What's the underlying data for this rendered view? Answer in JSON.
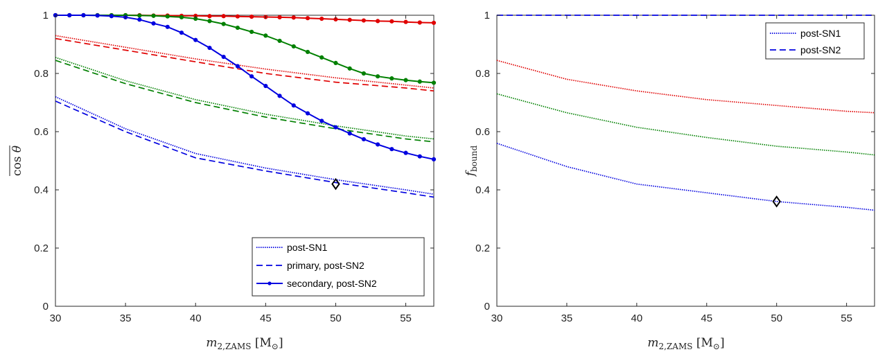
{
  "chart_data": [
    {
      "type": "line",
      "id": "left",
      "xlabel": "m_2,ZAMS [M_⊙]",
      "ylabel": "cos θ (mean)",
      "xlim": [
        30,
        57
      ],
      "ylim": [
        0,
        1
      ],
      "xticks": [
        "30",
        "35",
        "40",
        "45",
        "50",
        "55"
      ],
      "yticks": [
        "0",
        "0.2",
        "0.4",
        "0.6",
        "0.8",
        "1"
      ],
      "legend": {
        "position": "bottom-right",
        "entries": [
          "post-SN1",
          "primary, post-SN2",
          "secondary, post-SN2"
        ]
      },
      "marker": {
        "x": 50,
        "y": 0.42
      },
      "series": [
        {
          "name": "red post-SN1",
          "color": "#e00000",
          "style": "dotted",
          "x": [
            30,
            35,
            40,
            45,
            50,
            55,
            57
          ],
          "y": [
            0.93,
            0.89,
            0.85,
            0.815,
            0.785,
            0.76,
            0.75
          ]
        },
        {
          "name": "red primary, post-SN2",
          "color": "#e00000",
          "style": "dashed",
          "x": [
            30,
            35,
            40,
            45,
            50,
            55,
            57
          ],
          "y": [
            0.92,
            0.88,
            0.84,
            0.8,
            0.77,
            0.75,
            0.74
          ]
        },
        {
          "name": "red secondary, post-SN2",
          "color": "#e00000",
          "style": "solid-marker",
          "x": [
            30,
            31,
            32,
            33,
            34,
            35,
            36,
            37,
            38,
            39,
            40,
            41,
            42,
            43,
            44,
            45,
            46,
            47,
            48,
            49,
            50,
            51,
            52,
            53,
            54,
            55,
            56,
            57
          ],
          "y": [
            1.0,
            1.0,
            1.0,
            1.0,
            1.0,
            1.0,
            1.0,
            0.999,
            0.999,
            0.998,
            0.998,
            0.997,
            0.997,
            0.996,
            0.995,
            0.994,
            0.993,
            0.992,
            0.99,
            0.988,
            0.986,
            0.984,
            0.982,
            0.98,
            0.979,
            0.977,
            0.975,
            0.974
          ]
        },
        {
          "name": "green post-SN1",
          "color": "#008000",
          "style": "dotted",
          "x": [
            30,
            35,
            40,
            45,
            50,
            55,
            57
          ],
          "y": [
            0.855,
            0.775,
            0.71,
            0.66,
            0.62,
            0.585,
            0.575
          ]
        },
        {
          "name": "green primary, post-SN2",
          "color": "#008000",
          "style": "dashed",
          "x": [
            30,
            35,
            40,
            45,
            50,
            55,
            57
          ],
          "y": [
            0.845,
            0.765,
            0.7,
            0.65,
            0.61,
            0.575,
            0.565
          ]
        },
        {
          "name": "green secondary, post-SN2",
          "color": "#008000",
          "style": "solid-marker",
          "x": [
            30,
            31,
            32,
            33,
            34,
            35,
            36,
            37,
            38,
            39,
            40,
            41,
            42,
            43,
            44,
            45,
            46,
            47,
            48,
            49,
            50,
            51,
            52,
            53,
            54,
            55,
            56,
            57
          ],
          "y": [
            1.0,
            1.0,
            1.0,
            1.0,
            1.0,
            1.0,
            0.999,
            0.998,
            0.996,
            0.993,
            0.988,
            0.98,
            0.97,
            0.957,
            0.943,
            0.93,
            0.912,
            0.893,
            0.874,
            0.855,
            0.836,
            0.817,
            0.8,
            0.79,
            0.783,
            0.777,
            0.772,
            0.768
          ]
        },
        {
          "name": "blue post-SN1",
          "color": "#0000e0",
          "style": "dotted",
          "x": [
            30,
            35,
            40,
            45,
            50,
            55,
            57
          ],
          "y": [
            0.72,
            0.61,
            0.525,
            0.475,
            0.435,
            0.4,
            0.385
          ]
        },
        {
          "name": "blue primary, post-SN2",
          "color": "#0000e0",
          "style": "dashed",
          "x": [
            30,
            35,
            40,
            45,
            50,
            55,
            57
          ],
          "y": [
            0.705,
            0.6,
            0.51,
            0.465,
            0.425,
            0.39,
            0.375
          ]
        },
        {
          "name": "blue secondary, post-SN2",
          "color": "#0000e0",
          "style": "solid-marker",
          "x": [
            30,
            31,
            32,
            33,
            34,
            35,
            36,
            37,
            38,
            39,
            40,
            41,
            42,
            43,
            44,
            45,
            46,
            47,
            48,
            49,
            50,
            51,
            52,
            53,
            54,
            55,
            56,
            57
          ],
          "y": [
            1.0,
            1.0,
            1.0,
            0.999,
            0.997,
            0.993,
            0.985,
            0.972,
            0.96,
            0.94,
            0.915,
            0.888,
            0.857,
            0.825,
            0.79,
            0.757,
            0.723,
            0.69,
            0.663,
            0.637,
            0.615,
            0.594,
            0.574,
            0.556,
            0.54,
            0.527,
            0.515,
            0.505
          ]
        }
      ]
    },
    {
      "type": "line",
      "id": "right",
      "xlabel": "m_2,ZAMS [M_⊙]",
      "ylabel": "f_bound",
      "xlim": [
        30,
        57
      ],
      "ylim": [
        0,
        1
      ],
      "xticks": [
        "30",
        "35",
        "40",
        "45",
        "50",
        "55"
      ],
      "yticks": [
        "0",
        "0.2",
        "0.4",
        "0.6",
        "0.8",
        "1"
      ],
      "legend": {
        "position": "top-right",
        "entries": [
          "post-SN1",
          "post-SN2"
        ]
      },
      "marker": {
        "x": 50,
        "y": 0.36
      },
      "series": [
        {
          "name": "blue post-SN2",
          "color": "#0000e0",
          "style": "dashed",
          "x": [
            30,
            57
          ],
          "y": [
            1.0,
            1.0
          ]
        },
        {
          "name": "red post-SN1",
          "color": "#e00000",
          "style": "dotted",
          "x": [
            30,
            35,
            40,
            45,
            50,
            55,
            57
          ],
          "y": [
            0.845,
            0.78,
            0.74,
            0.71,
            0.69,
            0.67,
            0.665
          ]
        },
        {
          "name": "green post-SN1",
          "color": "#008000",
          "style": "dotted",
          "x": [
            30,
            35,
            40,
            45,
            50,
            55,
            57
          ],
          "y": [
            0.73,
            0.665,
            0.615,
            0.58,
            0.55,
            0.53,
            0.52
          ]
        },
        {
          "name": "blue post-SN1",
          "color": "#0000e0",
          "style": "dotted",
          "x": [
            30,
            35,
            40,
            45,
            50,
            55,
            57
          ],
          "y": [
            0.56,
            0.48,
            0.42,
            0.39,
            0.36,
            0.34,
            0.33
          ]
        }
      ]
    }
  ]
}
